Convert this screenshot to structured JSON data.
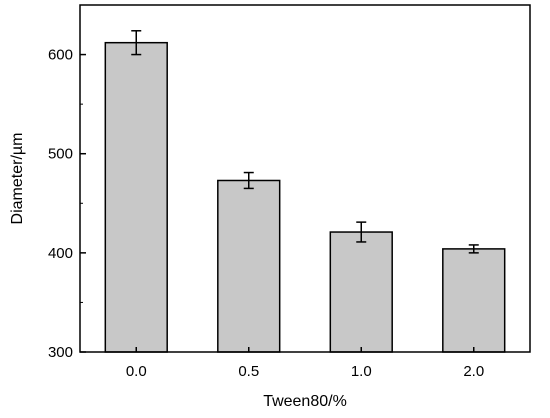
{
  "chart_data": {
    "type": "bar",
    "categories": [
      "0.0",
      "0.5",
      "1.0",
      "2.0"
    ],
    "values": [
      612,
      473,
      421,
      404
    ],
    "errors": [
      12,
      8,
      10,
      4
    ],
    "xlabel": "Tween80/%",
    "ylabel": "Diameter/µm",
    "ylim": [
      300,
      650
    ],
    "yticks": [
      300,
      400,
      500,
      600
    ],
    "yticks_labels": [
      "300",
      "400",
      "500",
      "600"
    ],
    "grid": false,
    "bar_color": "#c8c8c8",
    "edge_color": "#000000"
  }
}
